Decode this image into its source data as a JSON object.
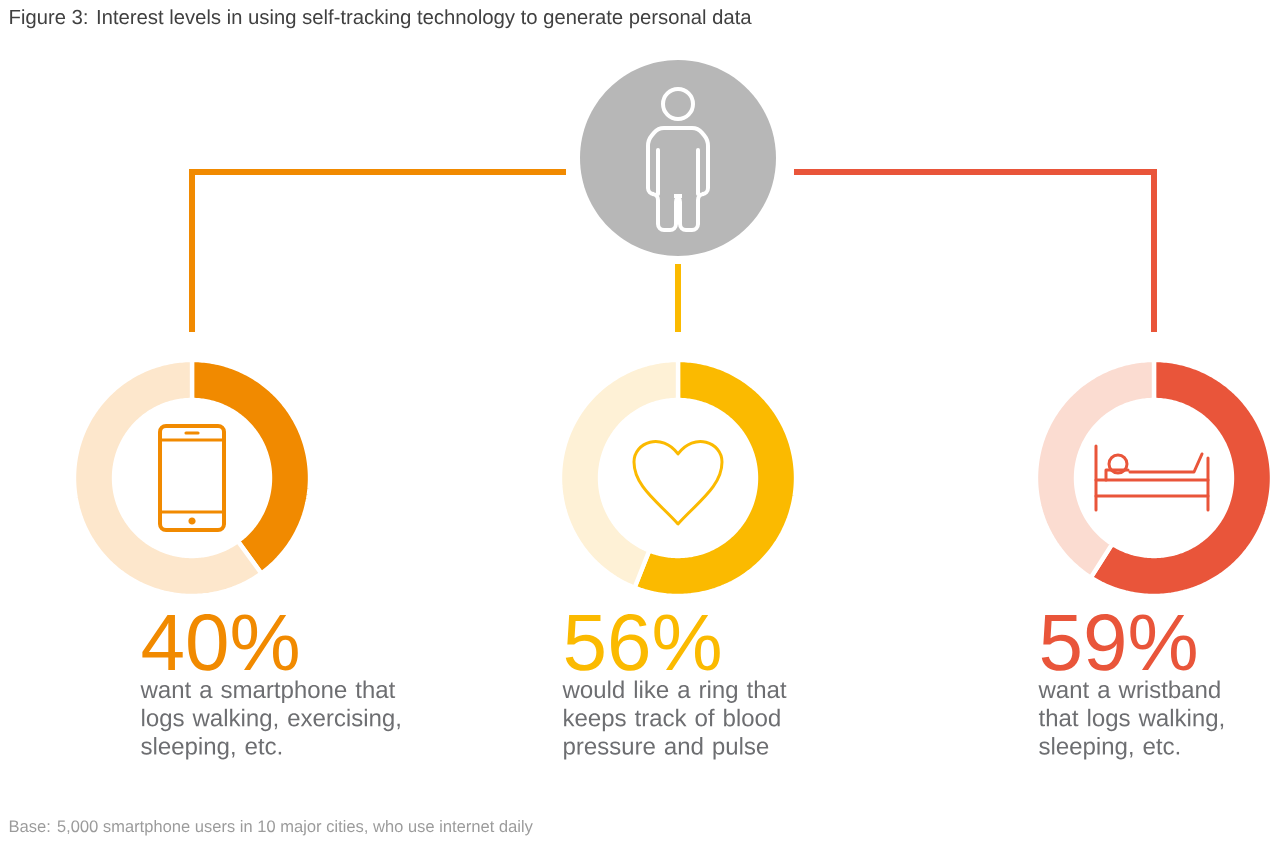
{
  "chart_data": [
    {
      "type": "other",
      "title": "Figure 3: Interest levels in using self-tracking technology to generate personal data"
    },
    {
      "type": "donut",
      "categories": [
        null,
        null
      ],
      "values": [
        40,
        60
      ],
      "colors": [
        "#f18a00",
        "#fde7cc"
      ],
      "value_labels": [
        "40%",
        null
      ],
      "annotations": [
        "want a smartphone that logs walking, exercising, sleeping, etc."
      ]
    },
    {
      "type": "donut",
      "categories": [
        null,
        null
      ],
      "values": [
        56,
        44
      ],
      "colors": [
        "#fbba00",
        "#fef1d6"
      ],
      "value_labels": [
        "56%",
        null
      ],
      "annotations": [
        "would like a ring that keeps track of blood pressure and pulse"
      ]
    },
    {
      "type": "donut",
      "categories": [
        null,
        null
      ],
      "values": [
        59,
        41
      ],
      "colors": [
        "#e9553a",
        "#fbdcd1"
      ],
      "value_labels": [
        "59%",
        null
      ],
      "annotations": [
        "want a wristband that logs walking, sleeping, etc."
      ]
    },
    {
      "type": "other",
      "annotations": [
        "Base: 5,000 smartphone users in 10 major cities, who use internet daily"
      ]
    }
  ]
}
